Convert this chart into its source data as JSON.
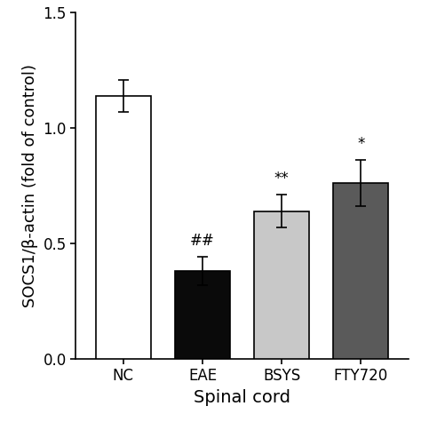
{
  "categories": [
    "NC",
    "EAE",
    "BSYS",
    "FTY720"
  ],
  "values": [
    1.14,
    0.38,
    0.64,
    0.76
  ],
  "errors": [
    0.07,
    0.06,
    0.07,
    0.1
  ],
  "bar_colors": [
    "#ffffff",
    "#0a0a0a",
    "#c8c8c8",
    "#5a5a5a"
  ],
  "bar_edgecolors": [
    "#000000",
    "#000000",
    "#000000",
    "#000000"
  ],
  "significance": [
    "",
    "##",
    "**",
    "*"
  ],
  "ylabel": "SOCS1/β-actin (fold of control)",
  "xlabel": "Spinal cord",
  "ylim": [
    0.0,
    1.5
  ],
  "yticks": [
    0.0,
    0.5,
    1.0,
    1.5
  ],
  "bar_width": 0.7,
  "sig_fontsize": 12,
  "axis_fontsize": 13,
  "tick_fontsize": 12,
  "xlabel_fontsize": 14
}
